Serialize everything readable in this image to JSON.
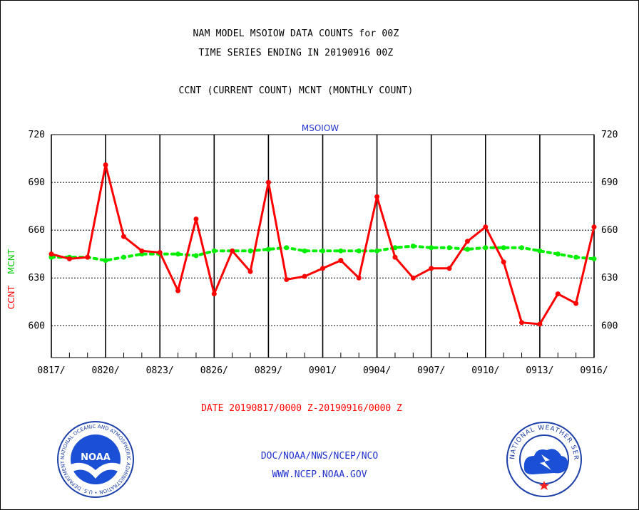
{
  "header": {
    "line1": "NAM MODEL MSOIOW DATA COUNTS for 00Z",
    "line2": "TIME SERIES ENDING IN 20190916 00Z",
    "line3": "CCNT (CURRENT COUNT) MCNT (MONTHLY COUNT)"
  },
  "footer": {
    "date_range": "DATE 20190817/0000 Z-20190916/0000 Z",
    "org_line": "DOC/NOAA/NWS/NCEP/NCO",
    "url_line": "WWW.NCEP.NOAA.GOV"
  },
  "logos": {
    "noaa_text": "NOAA",
    "noaa_ring": "NATIONAL OCEANIC AND ATMOSPHERIC ADMINISTRATION • U.S. DEPARTMENT OF COMMERCE •",
    "nws_ring": "NATIONAL WEATHER SERVICE"
  },
  "colors": {
    "ccnt": "#ff0000",
    "mcnt": "#00ee00",
    "title_blue": "#2233cc"
  },
  "chart_data": {
    "type": "line",
    "title": "MSOIOW",
    "ylabel_parts": [
      "CCNT",
      "MCNT"
    ],
    "ylim": [
      580,
      720
    ],
    "yticks": [
      600,
      630,
      660,
      690,
      720
    ],
    "xticks": [
      "0817/",
      "0820/",
      "0823/",
      "0826/",
      "0829/",
      "0901/",
      "0904/",
      "0907/",
      "0910/",
      "0913/",
      "0916/"
    ],
    "major_gridlines_every_days": 3,
    "grid": true,
    "x_start": "2019-08-17",
    "x_end": "2019-09-16",
    "series": [
      {
        "name": "CCNT",
        "values": [
          645,
          642,
          643,
          701,
          656,
          647,
          646,
          622,
          667,
          620,
          647,
          634,
          690,
          629,
          631,
          636,
          641,
          630,
          681,
          643,
          630,
          636,
          636,
          653,
          662,
          640,
          602,
          601,
          620,
          614,
          662
        ]
      },
      {
        "name": "MCNT",
        "values": [
          643,
          643,
          643,
          641,
          643,
          645,
          645,
          645,
          644,
          647,
          647,
          647,
          648,
          649,
          647,
          647,
          647,
          647,
          647,
          649,
          650,
          649,
          649,
          648,
          649,
          649,
          649,
          647,
          645,
          643,
          642
        ]
      }
    ]
  }
}
